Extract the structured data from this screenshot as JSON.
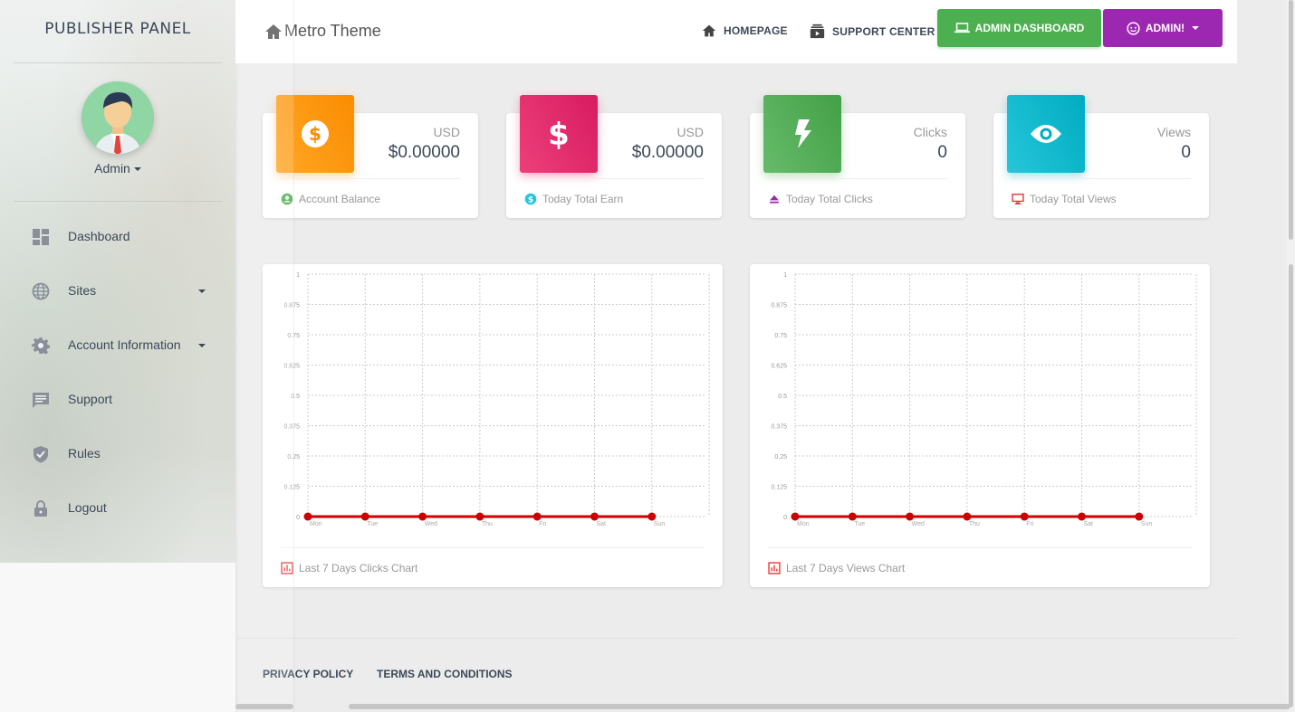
{
  "sidebar": {
    "logo": "PUBLISHER PANEL",
    "user": "Admin",
    "items": [
      {
        "label": "Dashboard",
        "icon": "dashboard-icon"
      },
      {
        "label": "Sites",
        "icon": "globe-icon",
        "has_caret": true
      },
      {
        "label": "Account Information",
        "icon": "gear-icon",
        "has_caret": true
      },
      {
        "label": "Support",
        "icon": "chat-icon"
      },
      {
        "label": "Rules",
        "icon": "shield-check-icon"
      },
      {
        "label": "Logout",
        "icon": "lock-icon"
      }
    ]
  },
  "topbar": {
    "breadcrumb": "Metro Theme",
    "homepage": "HOMEPAGE",
    "support_center": "SUPPORT CENTER",
    "admin_dashboard": "ADMIN DASHBOARD",
    "admin_menu": "ADMIN!"
  },
  "stats": [
    {
      "category": "USD",
      "value": "$0.00000",
      "footer": "Account Balance",
      "color": "#fb8c00",
      "icon": "dollar-circle-icon"
    },
    {
      "category": "USD",
      "value": "$0.00000",
      "footer": "Today Total Earn",
      "color": "#e91e63",
      "icon": "dollar-icon"
    },
    {
      "category": "Clicks",
      "value": "0",
      "footer": "Today Total Clicks",
      "color": "#43a047",
      "icon": "bolt-icon"
    },
    {
      "category": "Views",
      "value": "0",
      "footer": "Today Total Views",
      "color": "#00acc1",
      "icon": "eye-icon"
    }
  ],
  "chart_data": [
    {
      "type": "line",
      "categories": [
        "Mon",
        "Tue",
        "Wed",
        "Thu",
        "Fri",
        "Sat",
        "Sun"
      ],
      "series": [
        {
          "values": [
            0,
            0,
            0,
            0,
            0,
            0,
            0
          ],
          "color": "#cc0000"
        }
      ],
      "y_ticks": [
        "0",
        "0.125",
        "0.25",
        "0.375",
        "0.5",
        "0.625",
        "0.75",
        "0.875",
        "1"
      ],
      "ylim": [
        0,
        1
      ],
      "grid": true,
      "caption": "Last 7 Days Clicks Chart"
    },
    {
      "type": "line",
      "categories": [
        "Mon",
        "Tue",
        "Wed",
        "Thu",
        "Fri",
        "Sat",
        "Sun"
      ],
      "series": [
        {
          "values": [
            0,
            0,
            0,
            0,
            0,
            0,
            0
          ],
          "color": "#cc0000"
        }
      ],
      "y_ticks": [
        "0",
        "0.125",
        "0.25",
        "0.375",
        "0.5",
        "0.625",
        "0.75",
        "0.875",
        "1"
      ],
      "ylim": [
        0,
        1
      ],
      "grid": true,
      "caption": "Last 7 Days Views Chart"
    }
  ],
  "footer": {
    "privacy": "PRIVACY POLICY",
    "terms": "TERMS AND CONDITIONS"
  }
}
